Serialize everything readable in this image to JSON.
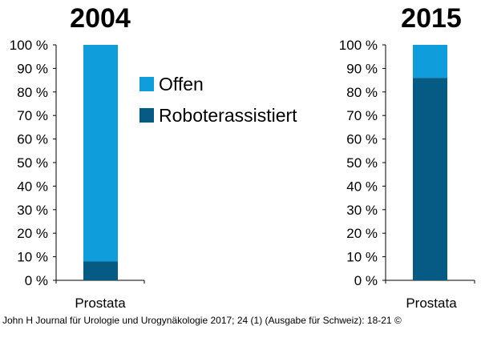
{
  "colors": {
    "offen": "#0f9ddb",
    "robot": "#065b84"
  },
  "legend": {
    "offen": "Offen",
    "robot": "Roboterassistiert"
  },
  "footer": {
    "citation": "John H Journal für Urologie und Urogynäkologie 2017; 24 (1) (Ausgabe für Schweiz): 18-21 ©"
  },
  "chart_data": [
    {
      "type": "bar",
      "stacked": true,
      "title": "2004",
      "categories": [
        "Prostata"
      ],
      "yticks": [
        "0 %",
        "10 %",
        "20 %",
        "30 %",
        "40 %",
        "50 %",
        "60 %",
        "70 %",
        "80 %",
        "90 %",
        "100 %"
      ],
      "ylim": [
        0,
        100
      ],
      "series": [
        {
          "name": "Roboterassistiert",
          "values": [
            8
          ]
        },
        {
          "name": "Offen",
          "values": [
            92
          ]
        }
      ]
    },
    {
      "type": "bar",
      "stacked": true,
      "title": "2015",
      "categories": [
        "Prostata"
      ],
      "yticks": [
        "0 %",
        "10 %",
        "20 %",
        "30 %",
        "40 %",
        "50 %",
        "60 %",
        "70 %",
        "80 %",
        "90 %",
        "100 %"
      ],
      "ylim": [
        0,
        100
      ],
      "series": [
        {
          "name": "Roboterassistiert",
          "values": [
            86
          ]
        },
        {
          "name": "Offen",
          "values": [
            14
          ]
        }
      ]
    }
  ]
}
